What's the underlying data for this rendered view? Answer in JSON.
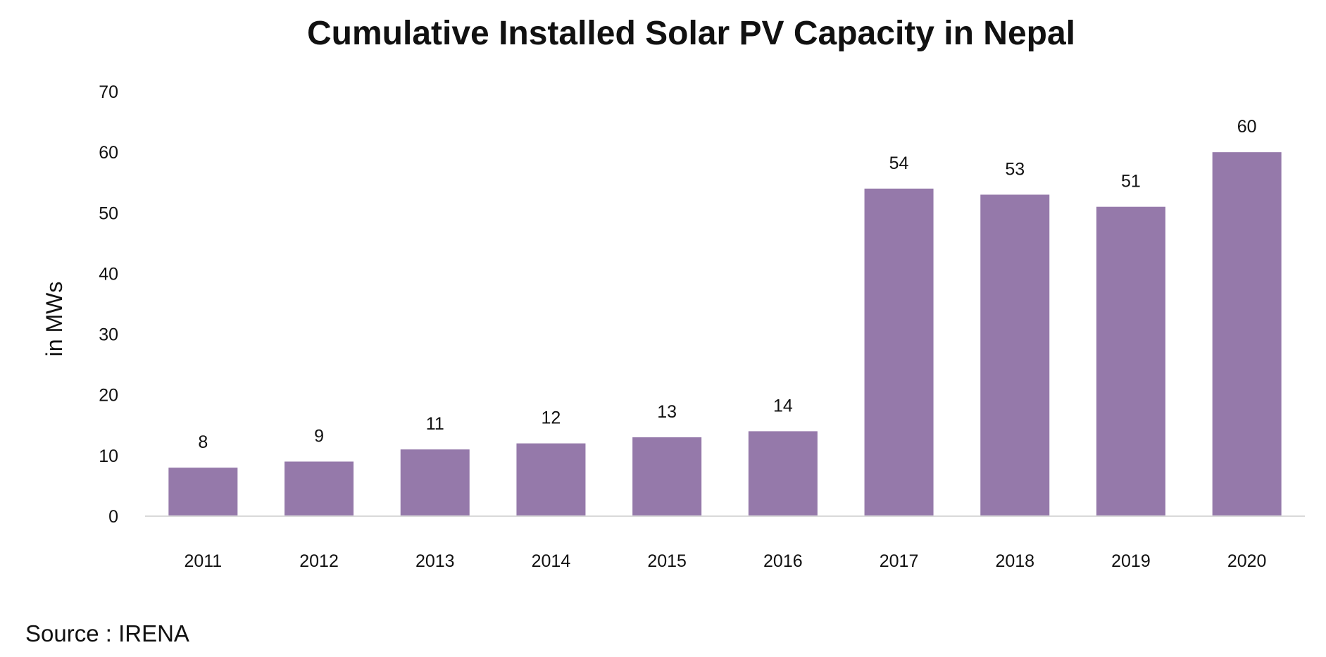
{
  "chart_data": {
    "type": "bar",
    "title": "Cumulative Installed Solar PV Capacity in Nepal",
    "xlabel": "",
    "ylabel": "in MWs",
    "categories": [
      "2011",
      "2012",
      "2013",
      "2014",
      "2015",
      "2016",
      "2017",
      "2018",
      "2019",
      "2020"
    ],
    "values": [
      8,
      9,
      11,
      12,
      13,
      14,
      54,
      53,
      51,
      60
    ],
    "data_labels": [
      "8",
      "9",
      "11",
      "12",
      "13",
      "14",
      "54",
      "53",
      "51",
      "60"
    ],
    "ylim": [
      0,
      70
    ],
    "yticks": [
      0,
      10,
      20,
      30,
      40,
      50,
      60,
      70
    ],
    "grid": false,
    "bar_color": "#9579aa",
    "axis_color": "#d9d9d9",
    "source": "Source : IRENA"
  }
}
